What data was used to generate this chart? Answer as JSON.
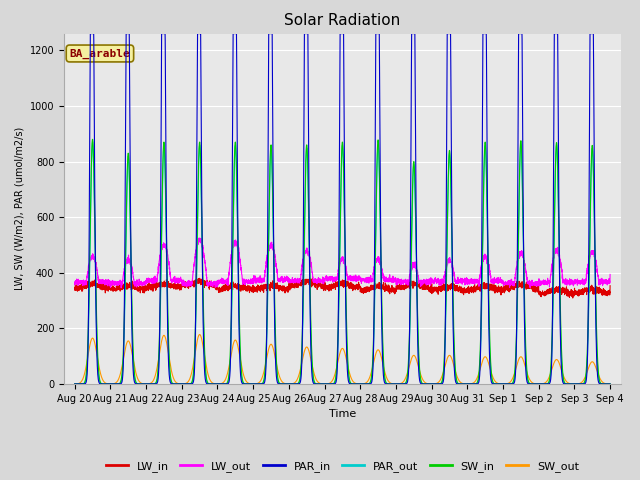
{
  "title": "Solar Radiation",
  "xlabel": "Time",
  "ylabel": "LW, SW (W/m2), PAR (umol/m2/s)",
  "annotation": "BA_arable",
  "ylim": [
    0,
    1260
  ],
  "xlim_days": [
    -0.3,
    15.3
  ],
  "x_tick_labels": [
    "Aug 20",
    "Aug 21",
    "Aug 22",
    "Aug 23",
    "Aug 24",
    "Aug 25",
    "Aug 26",
    "Aug 27",
    "Aug 28",
    "Aug 29",
    "Aug 30",
    "Aug 31",
    "Sep 1",
    "Sep 2",
    "Sep 3",
    "Sep 4"
  ],
  "x_tick_positions": [
    0,
    1,
    2,
    3,
    4,
    5,
    6,
    7,
    8,
    9,
    10,
    11,
    12,
    13,
    14,
    15
  ],
  "colors": {
    "LW_in": "#dd0000",
    "LW_out": "#ff00ff",
    "PAR_in": "#0000cc",
    "PAR_out": "#00cccc",
    "SW_in": "#00cc00",
    "SW_out": "#ff9900"
  },
  "ax_background": "#e8e8e8",
  "fig_background": "#d8d8d8",
  "grid_color": "#ffffff",
  "n_days": 15,
  "points_per_day": 288,
  "lw_linewidth": 0.8,
  "title_fontsize": 11,
  "legend_fontsize": 8,
  "tick_fontsize": 7,
  "ylabel_fontsize": 7,
  "xlabel_fontsize": 8
}
